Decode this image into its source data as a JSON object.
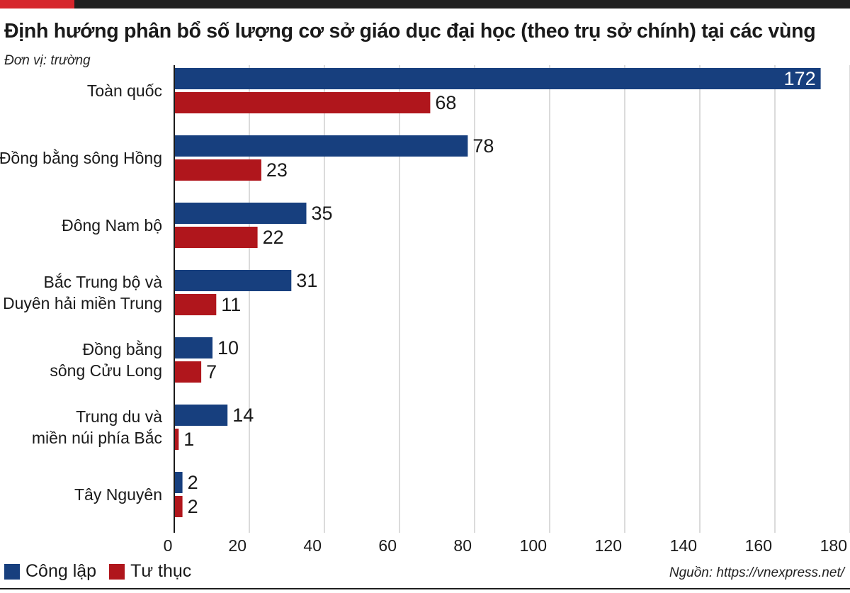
{
  "title": "Định hướng phân bổ số lượng cơ sở giáo dục đại học (theo trụ sở chính) tại các vùng",
  "unit_label": "Đơn vị: trường",
  "source": "Nguồn: https://vnexpress.net/",
  "colors": {
    "cong_lap": "#173f7e",
    "tu_thuc": "#b0161c",
    "accent": "#d6262c",
    "grid": "#cfcfcf"
  },
  "chart_data": {
    "type": "bar",
    "orientation": "horizontal",
    "categories": [
      "Toàn quốc",
      "Đồng bằng sông Hồng",
      "Đông Nam bộ",
      "Bắc Trung bộ và\nDuyên hải miền Trung",
      "Đồng bằng\nsông Cửu Long",
      "Trung du và\nmiền núi phía Bắc",
      "Tây Nguyên"
    ],
    "series": [
      {
        "name": "Công lập",
        "values": [
          172,
          78,
          35,
          31,
          10,
          14,
          2
        ]
      },
      {
        "name": "Tư thục",
        "values": [
          68,
          23,
          22,
          11,
          7,
          1,
          2
        ]
      }
    ],
    "xlim": [
      0,
      180
    ],
    "xticks": [
      "0",
      "20",
      "40",
      "60",
      "80",
      "100",
      "120",
      "140",
      "160",
      "180"
    ],
    "grid": true,
    "legend_position": "bottom-left"
  }
}
